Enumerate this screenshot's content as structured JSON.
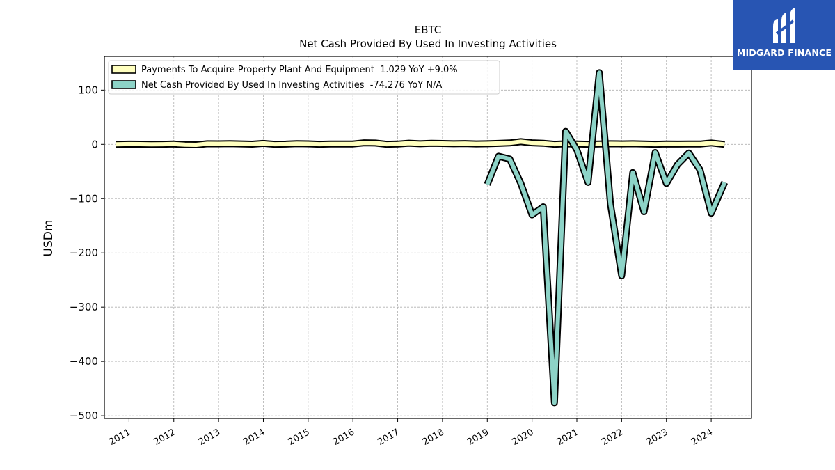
{
  "brand": {
    "name": "MIDGARD FINANCE",
    "color": "#2855b3"
  },
  "chart_data": {
    "type": "line",
    "title": "EBTC",
    "subtitle": "Net Cash Provided By Used In Investing Activities",
    "ylabel": "USDm",
    "xlabel": "",
    "ylim": [
      -505,
      162
    ],
    "xlim": [
      2010.45,
      2024.9
    ],
    "yticks": [
      100,
      0,
      -100,
      -200,
      -300,
      -400,
      -500
    ],
    "ytick_labels": [
      "100",
      "0",
      "−100",
      "−200",
      "−300",
      "−400",
      "−500"
    ],
    "xticks": [
      2011,
      2012,
      2013,
      2014,
      2015,
      2016,
      2017,
      2018,
      2019,
      2020,
      2021,
      2022,
      2023,
      2024
    ],
    "xtick_labels": [
      "2011",
      "2012",
      "2013",
      "2014",
      "2015",
      "2016",
      "2017",
      "2018",
      "2019",
      "2020",
      "2021",
      "2022",
      "2023",
      "2024"
    ],
    "grid": true,
    "legend_position": "top-left",
    "series": [
      {
        "name": "Payments To Acquire Property Plant And Equipment  1.029 YoY +9.0%",
        "color": "#ffffbf",
        "x": [
          2010.7,
          2011.0,
          2011.25,
          2011.5,
          2011.75,
          2012.0,
          2012.25,
          2012.5,
          2012.75,
          2013.0,
          2013.25,
          2013.5,
          2013.75,
          2014.0,
          2014.25,
          2014.5,
          2014.75,
          2015.0,
          2015.25,
          2015.5,
          2015.75,
          2016.0,
          2016.25,
          2016.5,
          2016.75,
          2017.0,
          2017.25,
          2017.5,
          2017.75,
          2018.0,
          2018.25,
          2018.5,
          2018.75,
          2019.0,
          2019.25,
          2019.5,
          2019.75,
          2020.0,
          2020.25,
          2020.5,
          2020.75,
          2021.0,
          2021.25,
          2021.5,
          2021.75,
          2022.0,
          2022.25,
          2022.5,
          2022.75,
          2023.0,
          2023.25,
          2023.5,
          2023.75,
          2024.0,
          2024.3
        ],
        "values": [
          0.0,
          0.5,
          0.4,
          0.0,
          0.2,
          0.6,
          -0.6,
          -0.9,
          1.2,
          1.0,
          1.4,
          0.9,
          0.4,
          1.8,
          0.3,
          0.5,
          1.3,
          1.0,
          0.3,
          0.8,
          0.7,
          0.8,
          2.8,
          2.4,
          0.3,
          0.6,
          2.2,
          1.2,
          2.1,
          1.7,
          1.2,
          1.5,
          0.9,
          1.2,
          1.8,
          2.6,
          5.0,
          2.8,
          2.0,
          0.2,
          1.0,
          0.7,
          0.3,
          0.8,
          1.2,
          0.9,
          1.1,
          0.6,
          0.2,
          0.8,
          0.5,
          0.6,
          0.7,
          2.6,
          0.0
        ]
      },
      {
        "name": "Net Cash Provided By Used In Investing Activities  -74.276 YoY N/A",
        "color": "#8dd3c7",
        "x": [
          2019.0,
          2019.25,
          2019.5,
          2019.75,
          2020.0,
          2020.25,
          2020.5,
          2020.75,
          2021.0,
          2021.25,
          2021.5,
          2021.75,
          2022.0,
          2022.25,
          2022.5,
          2022.75,
          2023.0,
          2023.25,
          2023.5,
          2023.75,
          2024.0,
          2024.3
        ],
        "values": [
          -74,
          -22,
          -27,
          -72,
          -130,
          -115,
          -476,
          24,
          -10,
          -70,
          132,
          -110,
          -242,
          -52,
          -124,
          -15,
          -72,
          -37,
          -16,
          -47,
          -127,
          -70
        ]
      }
    ]
  }
}
